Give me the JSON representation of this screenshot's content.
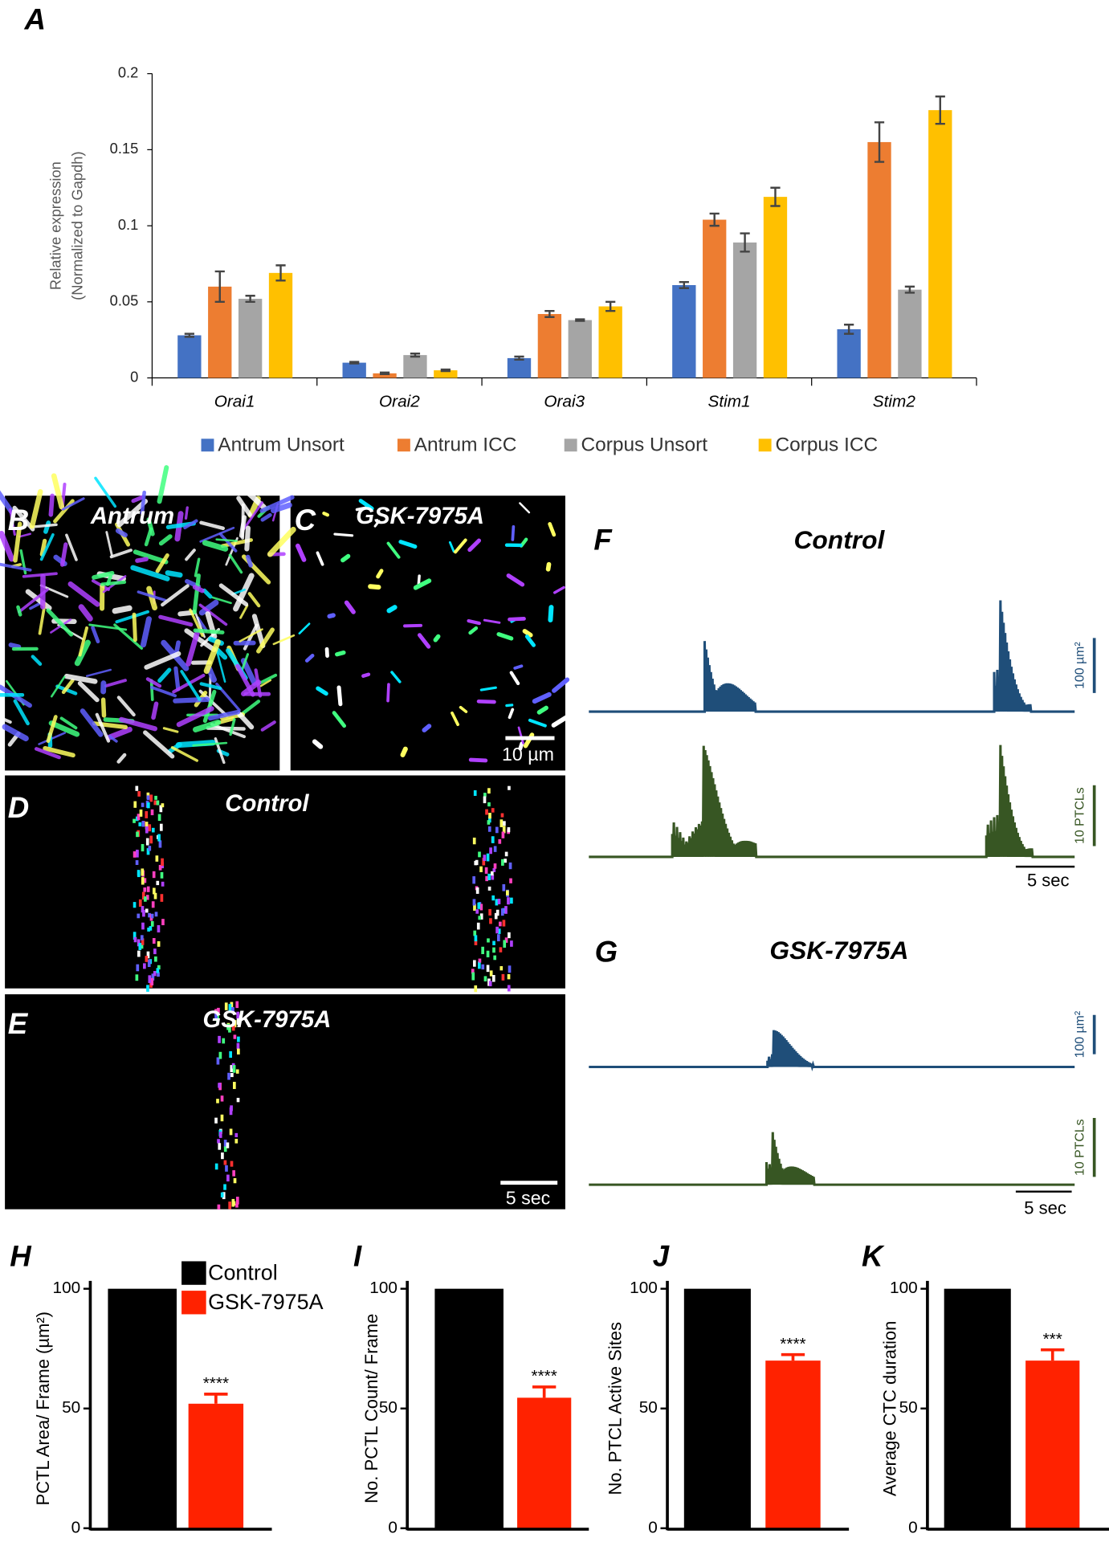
{
  "chart_data": [
    {
      "type": "bar",
      "panel": "A",
      "ylabel_lines": [
        "Relative expression",
        "(Normalized to Gapdh)"
      ],
      "categories": [
        "Orai1",
        "Orai2",
        "Orai3",
        "Stim1",
        "Stim2"
      ],
      "series": [
        {
          "name": "Antrum Unsort",
          "color": "#4472c4",
          "values": [
            0.028,
            0.01,
            0.013,
            0.061,
            0.032
          ],
          "errors": [
            0.001,
            0.0005,
            0.001,
            0.002,
            0.003
          ]
        },
        {
          "name": "Antrum ICC",
          "color": "#ed7d31",
          "values": [
            0.06,
            0.003,
            0.042,
            0.104,
            0.155
          ],
          "errors": [
            0.01,
            0.0005,
            0.002,
            0.004,
            0.013
          ]
        },
        {
          "name": "Corpus Unsort",
          "color": "#a5a5a5",
          "values": [
            0.052,
            0.015,
            0.038,
            0.089,
            0.058
          ],
          "errors": [
            0.002,
            0.001,
            0.0005,
            0.006,
            0.002
          ]
        },
        {
          "name": "Corpus ICC",
          "color": "#ffc000",
          "values": [
            0.069,
            0.005,
            0.047,
            0.119,
            0.176
          ],
          "errors": [
            0.005,
            0.0005,
            0.003,
            0.006,
            0.009
          ]
        }
      ],
      "ylim": [
        0,
        0.2
      ],
      "yticks": [
        0,
        0.05,
        0.1,
        0.15,
        0.2
      ]
    },
    {
      "type": "bar",
      "panel": "H",
      "ylabel": "PCTL Area/ Frame (µm²)",
      "series": [
        {
          "name": "Control",
          "color": "#000000",
          "values": [
            100
          ]
        },
        {
          "name": "GSK-7975A",
          "color": "#ff2200",
          "values": [
            52
          ],
          "errors": [
            4
          ],
          "significance": "****"
        }
      ],
      "ylim": [
        0,
        100
      ],
      "yticks": [
        0,
        50,
        100
      ]
    },
    {
      "type": "bar",
      "panel": "I",
      "ylabel": "No. PCTL Count/ Frame",
      "series": [
        {
          "color": "#000000",
          "values": [
            100
          ]
        },
        {
          "color": "#ff2200",
          "values": [
            54.5
          ],
          "errors": [
            4.5
          ],
          "significance": "****"
        }
      ],
      "ylim": [
        0,
        100
      ],
      "yticks": [
        0,
        50,
        100
      ]
    },
    {
      "type": "bar",
      "panel": "J",
      "ylabel": "No. PTCL Active Sites",
      "series": [
        {
          "color": "#000000",
          "values": [
            100
          ]
        },
        {
          "color": "#ff2200",
          "values": [
            70
          ],
          "errors": [
            2.5
          ],
          "significance": "****"
        }
      ],
      "ylim": [
        0,
        100
      ],
      "yticks": [
        0,
        50,
        100
      ]
    },
    {
      "type": "bar",
      "panel": "K",
      "ylabel": "Average CTC duration",
      "series": [
        {
          "color": "#000000",
          "values": [
            100
          ]
        },
        {
          "color": "#ff2200",
          "values": [
            70
          ],
          "errors": [
            4.5
          ],
          "significance": "***"
        }
      ],
      "ylim": [
        0,
        100
      ],
      "yticks": [
        0,
        50,
        100
      ]
    }
  ],
  "images": {
    "B": {
      "panel": "B",
      "label": "Antrum"
    },
    "C": {
      "panel": "C",
      "label": "GSK-7975A",
      "scale": "10 µm"
    },
    "D": {
      "panel": "D",
      "label": "Control"
    },
    "E": {
      "panel": "E",
      "label": "GSK-7975A",
      "scale": "5 sec"
    }
  },
  "traces": {
    "F": {
      "panel": "F",
      "title": "Control",
      "area_scale": "100 µm²",
      "count_scale": "10 PTCLs",
      "time_scale": "5 sec"
    },
    "G": {
      "panel": "G",
      "title": "GSK-7975A",
      "area_scale": "100 µm²",
      "count_scale": "10 PTCLs",
      "time_scale": "5 sec"
    }
  }
}
